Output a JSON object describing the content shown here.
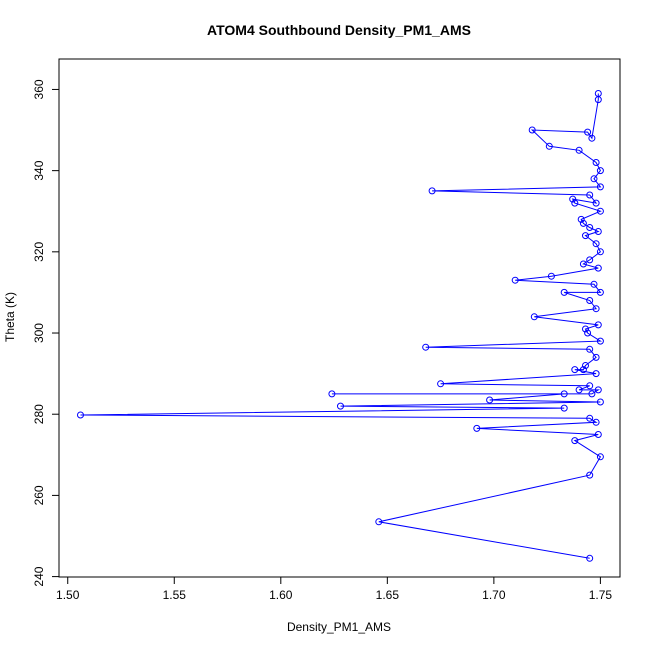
{
  "chart_data": {
    "type": "line",
    "title": "ATOM4 Southbound Density_PM1_AMS",
    "xlabel": "Density_PM1_AMS",
    "ylabel": "Theta (K)",
    "xlim": [
      1.5,
      1.75
    ],
    "ylim": [
      240,
      360
    ],
    "xticks": [
      "1.50",
      "1.55",
      "1.60",
      "1.65",
      "1.70",
      "1.75"
    ],
    "yticks": [
      "240",
      "260",
      "280",
      "300",
      "320",
      "340",
      "360"
    ],
    "grid": false,
    "legend": "none",
    "series": [
      {
        "color": "#0000ff",
        "marker": "open-circle",
        "points": [
          [
            1.749,
            359.0
          ],
          [
            1.749,
            357.5
          ],
          [
            1.746,
            348.0
          ],
          [
            1.744,
            349.5
          ],
          [
            1.718,
            350.0
          ],
          [
            1.726,
            346.0
          ],
          [
            1.74,
            345.0
          ],
          [
            1.748,
            342.0
          ],
          [
            1.75,
            340.0
          ],
          [
            1.747,
            338.0
          ],
          [
            1.75,
            336.0
          ],
          [
            1.671,
            335.0
          ],
          [
            1.745,
            334.0
          ],
          [
            1.748,
            332.0
          ],
          [
            1.737,
            333.0
          ],
          [
            1.738,
            332.0
          ],
          [
            1.75,
            330.0
          ],
          [
            1.741,
            328.0
          ],
          [
            1.742,
            327.0
          ],
          [
            1.745,
            326.0
          ],
          [
            1.749,
            325.0
          ],
          [
            1.743,
            324.0
          ],
          [
            1.748,
            322.0
          ],
          [
            1.75,
            320.0
          ],
          [
            1.745,
            318.0
          ],
          [
            1.742,
            317.0
          ],
          [
            1.749,
            316.0
          ],
          [
            1.727,
            314.0
          ],
          [
            1.71,
            313.0
          ],
          [
            1.747,
            312.0
          ],
          [
            1.75,
            310.0
          ],
          [
            1.733,
            310.0
          ],
          [
            1.745,
            308.0
          ],
          [
            1.748,
            306.0
          ],
          [
            1.719,
            304.0
          ],
          [
            1.749,
            302.0
          ],
          [
            1.743,
            301.0
          ],
          [
            1.744,
            300.0
          ],
          [
            1.75,
            298.0
          ],
          [
            1.668,
            296.5
          ],
          [
            1.745,
            296.0
          ],
          [
            1.748,
            294.0
          ],
          [
            1.743,
            292.0
          ],
          [
            1.742,
            291.0
          ],
          [
            1.738,
            291.0
          ],
          [
            1.748,
            290.0
          ],
          [
            1.675,
            287.5
          ],
          [
            1.745,
            287.0
          ],
          [
            1.74,
            286.0
          ],
          [
            1.749,
            286.0
          ],
          [
            1.746,
            285.0
          ],
          [
            1.624,
            285.0
          ],
          [
            1.733,
            285.0
          ],
          [
            1.698,
            283.5
          ],
          [
            1.75,
            283.0
          ],
          [
            1.628,
            282.0
          ],
          [
            1.733,
            281.5
          ],
          [
            1.506,
            279.8
          ],
          [
            1.745,
            279.0
          ],
          [
            1.748,
            278.0
          ],
          [
            1.692,
            276.5
          ],
          [
            1.749,
            275.0
          ],
          [
            1.738,
            273.5
          ],
          [
            1.75,
            269.5
          ],
          [
            1.745,
            265.0
          ],
          [
            1.646,
            253.5
          ],
          [
            1.745,
            244.5
          ]
        ]
      }
    ]
  }
}
